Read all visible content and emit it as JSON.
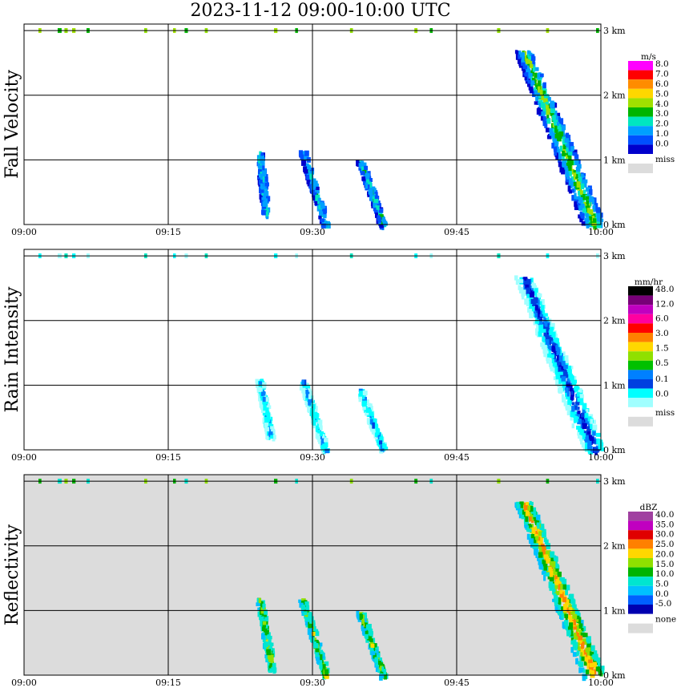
{
  "title": "2023-11-12   09:00-10:00 UTC",
  "x_ticks": [
    "09:00",
    "09:15",
    "09:30",
    "09:45",
    "10:00"
  ],
  "y_ticks": [
    "0 km",
    "1 km",
    "2 km",
    "3 km"
  ],
  "colors": {
    "grid": "#000000",
    "panel_bg": "#ffffff",
    "panel_bg_missing": "#dcdcdc"
  },
  "chart_data": [
    {
      "type": "heatmap",
      "name": "fall-velocity",
      "title": "Fall Velocity",
      "ylabel": "Fall Velocity",
      "xlabel": "",
      "xlim": [
        "09:00",
        "10:00"
      ],
      "ylim": [
        0,
        3.0
      ],
      "y_unit": "km",
      "colorbar": {
        "unit": "m/s",
        "labels": [
          "8.0",
          "7.0",
          "6.0",
          "5.0",
          "4.0",
          "3.0",
          "2.0",
          "1.0",
          "0.0"
        ],
        "colors": [
          "#ff00ff",
          "#ff0000",
          "#ff8c00",
          "#ffd700",
          "#a0e000",
          "#00b400",
          "#00e6c0",
          "#00a0ff",
          "#0050ff",
          "#0000cc"
        ],
        "missing_label": "miss",
        "missing_color": "#dcdcdc"
      },
      "features": [
        {
          "t_start": 24.2,
          "t_end": 25.4,
          "h_base": 0.15,
          "h_top": 1.15,
          "level": "2.0-4.0"
        },
        {
          "t_start": 28.0,
          "t_end": 31.5,
          "h_base": 0.0,
          "h_top": 1.15,
          "level": "1.0-4.0"
        },
        {
          "t_start": 34.0,
          "t_end": 37.5,
          "h_base": 0.0,
          "h_top": 1.0,
          "level": "1.0-3.0"
        },
        {
          "t_start": 51.0,
          "t_end": 60.0,
          "h_base": 0.0,
          "h_top": 2.7,
          "level": "2.0-6.0"
        }
      ]
    },
    {
      "type": "heatmap",
      "name": "rain-intensity",
      "title": "Rain Intensity",
      "ylabel": "Rain Intensity",
      "xlabel": "",
      "xlim": [
        "09:00",
        "10:00"
      ],
      "ylim": [
        0,
        3.0
      ],
      "y_unit": "km",
      "colorbar": {
        "unit": "mm/hr",
        "labels": [
          "48.0",
          "12.0",
          "6.0",
          "3.0",
          "1.5",
          "0.5",
          "0.1",
          "0.0"
        ],
        "colors": [
          "#000000",
          "#780078",
          "#c000c0",
          "#ff00a0",
          "#ff0000",
          "#ff8000",
          "#ffd700",
          "#90e000",
          "#00c000",
          "#0080ff",
          "#0040e0",
          "#00ffff",
          "#a0ffff"
        ],
        "missing_label": "miss",
        "missing_color": "#dcdcdc"
      },
      "features": [
        {
          "t_start": 24.0,
          "t_end": 26.0,
          "h_base": 0.2,
          "h_top": 1.1,
          "level": "0.1"
        },
        {
          "t_start": 28.0,
          "t_end": 31.5,
          "h_base": 0.0,
          "h_top": 1.1,
          "level": "0.1-1.5"
        },
        {
          "t_start": 34.0,
          "t_end": 37.5,
          "h_base": 0.0,
          "h_top": 0.95,
          "level": "0.1-3.0"
        },
        {
          "t_start": 51.0,
          "t_end": 60.0,
          "h_base": 0.0,
          "h_top": 2.7,
          "level": "0.1-6.0"
        }
      ]
    },
    {
      "type": "heatmap",
      "name": "reflectivity",
      "title": "Reflectivity",
      "ylabel": "Reflectivity",
      "xlabel": "",
      "xlim": [
        "09:00",
        "10:00"
      ],
      "ylim": [
        0,
        3.0
      ],
      "y_unit": "km",
      "colorbar": {
        "unit": "dBZ",
        "labels": [
          "40.0",
          "35.0",
          "30.0",
          "25.0",
          "20.0",
          "15.0",
          "10.0",
          "5.0",
          "0.0",
          "-5.0"
        ],
        "colors": [
          "#a040a0",
          "#c000c0",
          "#e00000",
          "#ff8000",
          "#ffd700",
          "#90e000",
          "#00b400",
          "#00e6d0",
          "#00c0ff",
          "#0060ff",
          "#0000b0"
        ],
        "missing_label": "none",
        "missing_color": "#dcdcdc"
      },
      "features": [
        {
          "t_start": 24.0,
          "t_end": 26.0,
          "h_base": 0.1,
          "h_top": 1.2,
          "level": "0.0-10.0"
        },
        {
          "t_start": 28.0,
          "t_end": 31.5,
          "h_base": 0.0,
          "h_top": 1.2,
          "level": "0.0-20.0"
        },
        {
          "t_start": 34.0,
          "t_end": 37.5,
          "h_base": 0.0,
          "h_top": 1.0,
          "level": "0.0-25.0"
        },
        {
          "t_start": 51.0,
          "t_end": 60.0,
          "h_base": 0.0,
          "h_top": 2.7,
          "level": "0.0-30.0"
        }
      ]
    }
  ]
}
